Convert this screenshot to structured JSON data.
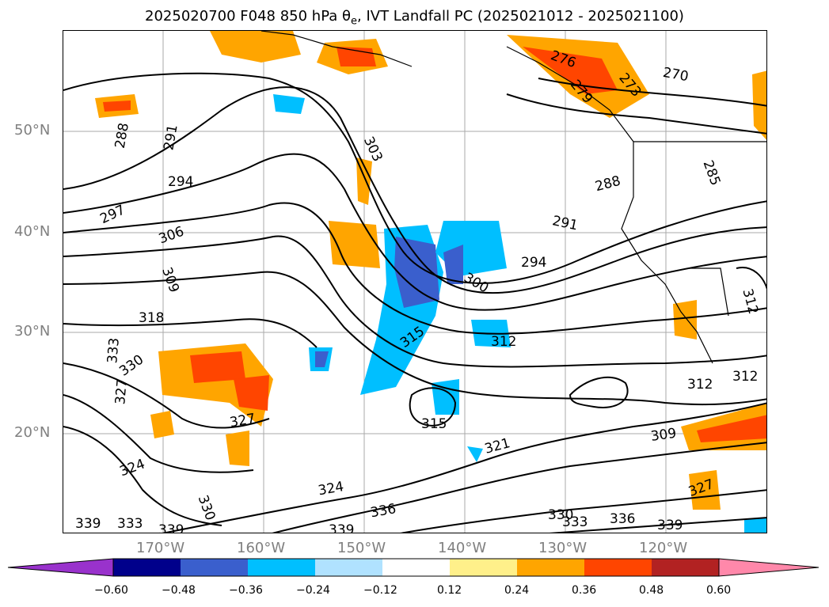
{
  "title": {
    "prefix": "2025020700 F048 850 hPa θ",
    "sub": "e",
    "suffix": ", IVT Landfall PC (2025021012 - 2025021100)"
  },
  "axes": {
    "lat_labels": [
      "50°N",
      "40°N",
      "30°N",
      "20°N"
    ],
    "lon_labels": [
      "170°W",
      "160°W",
      "150°W",
      "140°W",
      "130°W",
      "120°W"
    ]
  },
  "contour_labels": [
    "288",
    "291",
    "294",
    "297",
    "306",
    "309",
    "318",
    "333",
    "330",
    "327",
    "324",
    "327",
    "339",
    "333",
    "339",
    "330",
    "303",
    "315",
    "300",
    "294",
    "291",
    "288",
    "312",
    "315",
    "321",
    "324",
    "336",
    "339",
    "330",
    "333",
    "336",
    "339",
    "309",
    "312",
    "312",
    "312",
    "285",
    "276",
    "279",
    "273",
    "270",
    "327"
  ],
  "colorbar": {
    "colors": [
      "#9932cc",
      "#00008b",
      "#3a5fcd",
      "#00bfff",
      "#b0e2ff",
      "#ffffff",
      "#fff08a",
      "#ffa500",
      "#ff4500",
      "#b22222",
      "#ff88aa"
    ],
    "tick_labels": [
      "−0.60",
      "−0.48",
      "−0.36",
      "−0.24",
      "−0.12",
      "0.12",
      "0.24",
      "0.36",
      "0.48",
      "0.60"
    ]
  },
  "colors": {
    "positive_mid": "#ffa500",
    "positive_high": "#ff4500",
    "negative_mid": "#00bfff",
    "negative_high": "#3a5fcd",
    "light_negative": "#b0e2ff",
    "light_positive": "#fff08a"
  }
}
